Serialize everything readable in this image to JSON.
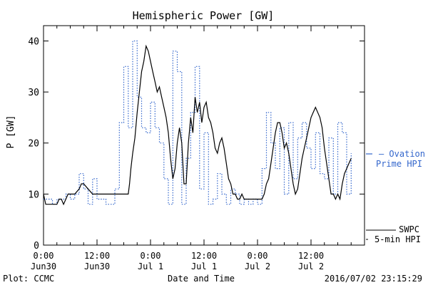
{
  "chart_data": {
    "type": "line",
    "title": "Hemispheric Power [GW]",
    "xlabel": "Date and Time",
    "ylabel": "P [GW]",
    "ylim": [
      0,
      43
    ],
    "xlim": [
      0,
      72
    ],
    "x_units": "hours since 2016-06-30 00:00 UT",
    "x_ticks": [
      {
        "x": 0,
        "line1": "0:00",
        "line2": "Jun30"
      },
      {
        "x": 12,
        "line1": "12:00",
        "line2": "Jun30"
      },
      {
        "x": 24,
        "line1": "0:00",
        "line2": "Jul 1"
      },
      {
        "x": 36,
        "line1": "12:00",
        "line2": "Jul 1"
      },
      {
        "x": 48,
        "line1": "0:00",
        "line2": "Jul 2"
      },
      {
        "x": 60,
        "line1": "12:00",
        "line2": "Jul 2"
      }
    ],
    "y_ticks": [
      0,
      10,
      20,
      30,
      40
    ],
    "grid": false,
    "series": [
      {
        "name": "SWPC 5-min HPI",
        "color": "#000000",
        "style": "solid",
        "points": [
          [
            0,
            10
          ],
          [
            0.5,
            8
          ],
          [
            1,
            8
          ],
          [
            2,
            8
          ],
          [
            3,
            8
          ],
          [
            3.5,
            9
          ],
          [
            4,
            9
          ],
          [
            4.5,
            8
          ],
          [
            5,
            9
          ],
          [
            5.5,
            10
          ],
          [
            6,
            10
          ],
          [
            7,
            10
          ],
          [
            8,
            11
          ],
          [
            8.5,
            12
          ],
          [
            9,
            12
          ],
          [
            10,
            11
          ],
          [
            11,
            10
          ],
          [
            12,
            10
          ],
          [
            13,
            10
          ],
          [
            14,
            10
          ],
          [
            15,
            10
          ],
          [
            16,
            10
          ],
          [
            17,
            10
          ],
          [
            18,
            10
          ],
          [
            19,
            10
          ],
          [
            19.3,
            12
          ],
          [
            19.6,
            15
          ],
          [
            20,
            18
          ],
          [
            20.5,
            21
          ],
          [
            21,
            26
          ],
          [
            21.5,
            30
          ],
          [
            22,
            34
          ],
          [
            22.5,
            36
          ],
          [
            23,
            39
          ],
          [
            23.5,
            38
          ],
          [
            24,
            36
          ],
          [
            24.5,
            34
          ],
          [
            25,
            32
          ],
          [
            25.5,
            30
          ],
          [
            26,
            31
          ],
          [
            26.5,
            29
          ],
          [
            27,
            27
          ],
          [
            27.5,
            25
          ],
          [
            28,
            22
          ],
          [
            28.5,
            17
          ],
          [
            29,
            13
          ],
          [
            29.5,
            15
          ],
          [
            30,
            20
          ],
          [
            30.5,
            23
          ],
          [
            31,
            20
          ],
          [
            31.5,
            12
          ],
          [
            32,
            12
          ],
          [
            32.5,
            20
          ],
          [
            33,
            25
          ],
          [
            33.5,
            22
          ],
          [
            34,
            29
          ],
          [
            34.5,
            26
          ],
          [
            35,
            28
          ],
          [
            35.5,
            24
          ],
          [
            36,
            27
          ],
          [
            36.5,
            28
          ],
          [
            37,
            25
          ],
          [
            37.5,
            24
          ],
          [
            38,
            22
          ],
          [
            38.5,
            19
          ],
          [
            39,
            18
          ],
          [
            39.5,
            20
          ],
          [
            40,
            21
          ],
          [
            40.5,
            19
          ],
          [
            41,
            16
          ],
          [
            41.5,
            13
          ],
          [
            42,
            12
          ],
          [
            42.5,
            10
          ],
          [
            43,
            10
          ],
          [
            43.5,
            9
          ],
          [
            44,
            9
          ],
          [
            44.5,
            10
          ],
          [
            45,
            9
          ],
          [
            46,
            9
          ],
          [
            47,
            9
          ],
          [
            48,
            9
          ],
          [
            49,
            9
          ],
          [
            49.5,
            10
          ],
          [
            50,
            12
          ],
          [
            50.5,
            13
          ],
          [
            51,
            16
          ],
          [
            51.5,
            19
          ],
          [
            52,
            22
          ],
          [
            52.5,
            24
          ],
          [
            53,
            24
          ],
          [
            53.5,
            22
          ],
          [
            54,
            19
          ],
          [
            54.5,
            20
          ],
          [
            55,
            18
          ],
          [
            55.5,
            15
          ],
          [
            56,
            12
          ],
          [
            56.5,
            10
          ],
          [
            57,
            11
          ],
          [
            57.5,
            14
          ],
          [
            58,
            17
          ],
          [
            58.5,
            19
          ],
          [
            59,
            21
          ],
          [
            59.5,
            23
          ],
          [
            60,
            25
          ],
          [
            60.5,
            26
          ],
          [
            61,
            27
          ],
          [
            61.5,
            26
          ],
          [
            62,
            25
          ],
          [
            62.5,
            23
          ],
          [
            63,
            19
          ],
          [
            63.5,
            16
          ],
          [
            64,
            13
          ],
          [
            64.5,
            10
          ],
          [
            65,
            10
          ],
          [
            65.5,
            9
          ],
          [
            66,
            10
          ],
          [
            66.5,
            9
          ],
          [
            67,
            12
          ],
          [
            67.5,
            14
          ],
          [
            68,
            15
          ],
          [
            68.5,
            16
          ],
          [
            69,
            17
          ]
        ]
      },
      {
        "name": "Ovation Prime HPI",
        "color": "#3366cc",
        "style": "dotted",
        "points": [
          [
            0,
            9
          ],
          [
            1,
            9
          ],
          [
            2,
            8
          ],
          [
            3,
            9
          ],
          [
            4,
            9
          ],
          [
            5,
            10
          ],
          [
            6,
            9
          ],
          [
            7,
            10
          ],
          [
            8,
            14
          ],
          [
            9,
            11
          ],
          [
            10,
            8
          ],
          [
            11,
            13
          ],
          [
            12,
            9
          ],
          [
            13,
            9
          ],
          [
            14,
            8
          ],
          [
            15,
            8
          ],
          [
            16,
            11
          ],
          [
            17,
            24
          ],
          [
            18,
            35
          ],
          [
            19,
            23
          ],
          [
            20,
            40
          ],
          [
            21,
            29
          ],
          [
            22,
            23
          ],
          [
            23,
            22
          ],
          [
            24,
            28
          ],
          [
            25,
            23
          ],
          [
            26,
            20
          ],
          [
            27,
            13
          ],
          [
            28,
            8
          ],
          [
            29,
            38
          ],
          [
            30,
            34
          ],
          [
            31,
            8
          ],
          [
            32,
            17
          ],
          [
            33,
            26
          ],
          [
            34,
            35
          ],
          [
            35,
            11
          ],
          [
            36,
            22
          ],
          [
            37,
            8
          ],
          [
            38,
            9
          ],
          [
            39,
            14
          ],
          [
            40,
            10
          ],
          [
            41,
            8
          ],
          [
            42,
            11
          ],
          [
            43,
            10
          ],
          [
            44,
            8
          ],
          [
            45,
            9
          ],
          [
            46,
            8
          ],
          [
            47,
            9
          ],
          [
            48,
            8
          ],
          [
            49,
            15
          ],
          [
            50,
            26
          ],
          [
            51,
            20
          ],
          [
            52,
            15
          ],
          [
            53,
            23
          ],
          [
            54,
            10
          ],
          [
            55,
            24
          ],
          [
            56,
            13
          ],
          [
            57,
            21
          ],
          [
            58,
            24
          ],
          [
            59,
            19
          ],
          [
            60,
            15
          ],
          [
            61,
            22
          ],
          [
            62,
            14
          ],
          [
            63,
            13
          ],
          [
            64,
            21
          ],
          [
            65,
            10
          ],
          [
            66,
            24
          ],
          [
            67,
            22
          ],
          [
            68,
            10
          ],
          [
            69,
            18
          ]
        ]
      }
    ],
    "legend": [
      {
        "text_lines": [
          "– Ovation",
          "Prime HPI"
        ],
        "color": "#3366cc"
      },
      {
        "text_lines": [
          "SWPC",
          "5-min HPI"
        ],
        "color": "#000000"
      }
    ],
    "placement": "right-outside"
  },
  "footer": {
    "plot_credit": "Plot: CCMC",
    "timestamp": "2016/07/02 23:15:29"
  }
}
